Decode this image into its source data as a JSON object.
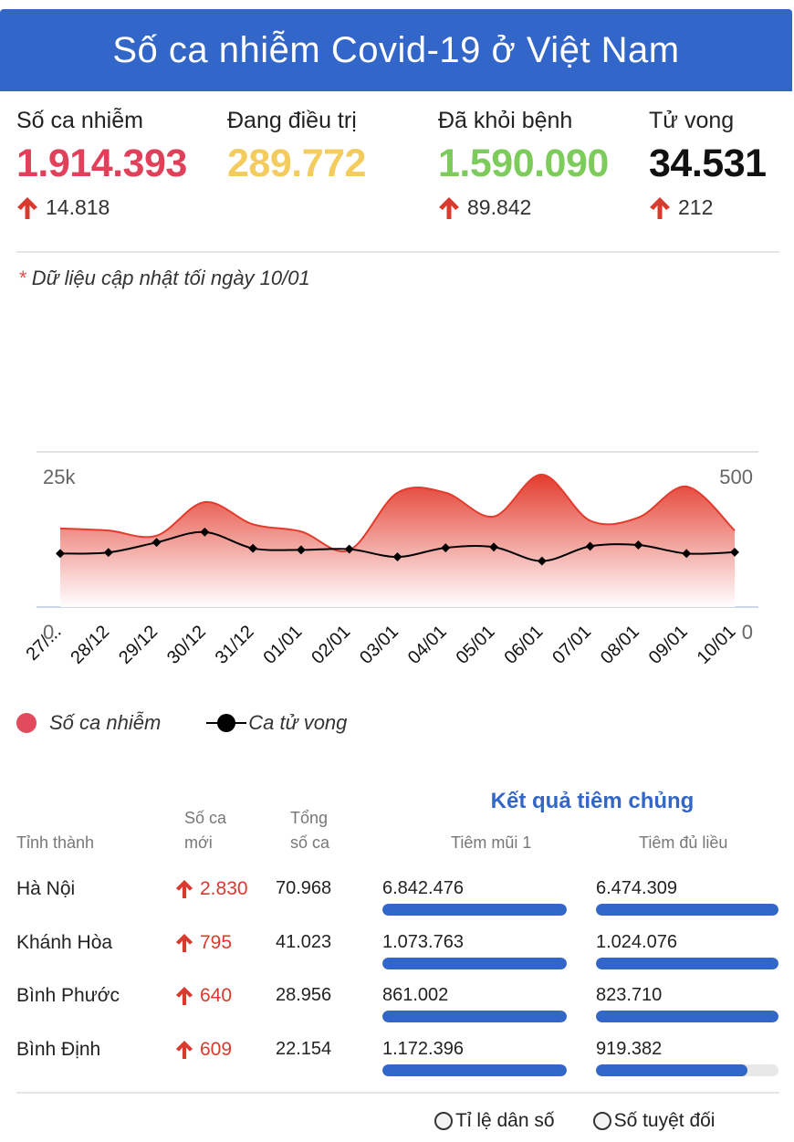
{
  "header": {
    "title": "Số ca nhiễm Covid-19 ở Việt Nam"
  },
  "stats": [
    {
      "label": "Số ca nhiễm",
      "value": "1.914.393",
      "delta": "14.818",
      "color": "#e0405a"
    },
    {
      "label": "Đang điều trị",
      "value": "289.772",
      "delta": "",
      "color": "#f4cb5d"
    },
    {
      "label": "Đã khỏi bệnh",
      "value": "1.590.090",
      "delta": "89.842",
      "color": "#7ccb5b"
    },
    {
      "label": "Tử vong",
      "value": "34.531",
      "delta": "212",
      "color": "#111111"
    }
  ],
  "note": {
    "star": "*",
    "text": "Dữ liệu cập nhật tối ngày 10/01"
  },
  "chart_data": {
    "type": "area",
    "categories": [
      "27/...",
      "28/12",
      "29/12",
      "30/12",
      "31/12",
      "01/01",
      "02/01",
      "03/01",
      "04/01",
      "05/01",
      "06/01",
      "07/01",
      "08/01",
      "09/01",
      "10/01"
    ],
    "series": [
      {
        "name": "Số ca nhiễm",
        "axis": "left",
        "color": "#e24a5e",
        "values": [
          15200,
          14800,
          13800,
          20300,
          16000,
          14600,
          11000,
          22100,
          22100,
          17500,
          25600,
          16700,
          17300,
          23300,
          14800
        ]
      },
      {
        "name": "Ca tử vong",
        "axis": "right",
        "color": "#000000",
        "values": [
          207,
          211,
          250,
          290,
          227,
          221,
          224,
          194,
          229,
          232,
          178,
          235,
          240,
          207,
          212
        ]
      }
    ],
    "left_axis": {
      "ticks": [
        "0",
        "25k"
      ],
      "range": [
        0,
        30000
      ]
    },
    "right_axis": {
      "ticks": [
        "0",
        "500"
      ],
      "range": [
        0,
        600
      ]
    },
    "grid": true,
    "legend_position": "bottom-left"
  },
  "legend": {
    "cases": "Số ca nhiễm",
    "deaths": "Ca tử vong"
  },
  "table": {
    "vax_title": "Kết quả tiêm chủng",
    "headers": {
      "province": "Tỉnh thành",
      "new_line1": "Số ca",
      "new_line2": "mới",
      "total_line1": "Tổng",
      "total_line2": "số ca",
      "dose1": "Tiêm mũi 1",
      "full": "Tiêm đủ liều"
    },
    "rows": [
      {
        "province": "Hà Nội",
        "new": "2.830",
        "total": "70.968",
        "dose1": "6.842.476",
        "dose1_fraction": 1.0,
        "full": "6.474.309",
        "full_fraction": 1.0
      },
      {
        "province": "Khánh Hòa",
        "new": "795",
        "total": "41.023",
        "dose1": "1.073.763",
        "dose1_fraction": 1.0,
        "full": "1.024.076",
        "full_fraction": 1.0
      },
      {
        "province": "Bình Phước",
        "new": "640",
        "total": "28.956",
        "dose1": "861.002",
        "dose1_fraction": 1.0,
        "full": "823.710",
        "full_fraction": 1.0
      },
      {
        "province": "Bình Định",
        "new": "609",
        "total": "22.154",
        "dose1": "1.172.396",
        "dose1_fraction": 1.0,
        "full": "919.382",
        "full_fraction": 0.83
      }
    ]
  },
  "radios": {
    "relative": "Tỉ lệ dân số",
    "absolute": "Số tuyệt đối"
  }
}
